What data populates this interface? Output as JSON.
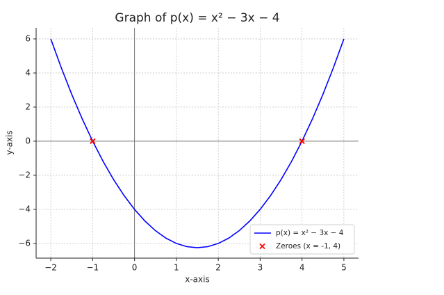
{
  "chart_data": {
    "type": "line",
    "title": "Graph of p(x) = x² − 3x − 4",
    "x_label": "x-axis",
    "y_label": "y-axis",
    "xlim": [
      -2.35,
      5.35
    ],
    "ylim": [
      -6.86,
      6.65
    ],
    "xticks": [
      {
        "value": -2,
        "label": "−2"
      },
      {
        "value": -1,
        "label": "−1"
      },
      0,
      1,
      2,
      3,
      4,
      5
    ],
    "yticks": [
      {
        "value": -6,
        "label": "−6"
      },
      {
        "value": -4,
        "label": "−4"
      },
      {
        "value": -2,
        "label": "−2"
      },
      0,
      2,
      4,
      6
    ],
    "grid": true,
    "legend": "lower right",
    "series": [
      {
        "name": "p(x) = x² − 3x − 4",
        "color": "#0000ff",
        "type": "line",
        "x": [
          -2,
          -1.75,
          -1.5,
          -1.25,
          -1,
          -0.75,
          -0.5,
          -0.25,
          0,
          0.25,
          0.5,
          0.75,
          1,
          1.25,
          1.5,
          1.75,
          2,
          2.25,
          2.5,
          2.75,
          3,
          3.25,
          3.5,
          3.75,
          4,
          4.25,
          4.5,
          4.75,
          5
        ],
        "values": [
          6,
          4.3125,
          2.75,
          1.3125,
          0,
          -1.1875,
          -2.25,
          -3.1875,
          -4,
          -4.6875,
          -5.25,
          -5.6875,
          -6,
          -6.1875,
          -6.25,
          -6.1875,
          -6,
          -5.6875,
          -5.25,
          -4.6875,
          -4,
          -3.1875,
          -2.25,
          -1.1875,
          0,
          1.3125,
          2.75,
          4.3125,
          6
        ]
      },
      {
        "name": "Zeroes (x = -1, 4)",
        "color": "#ff0000",
        "type": "scatter",
        "x": [
          -1,
          4
        ],
        "values": [
          0,
          0
        ]
      }
    ]
  }
}
